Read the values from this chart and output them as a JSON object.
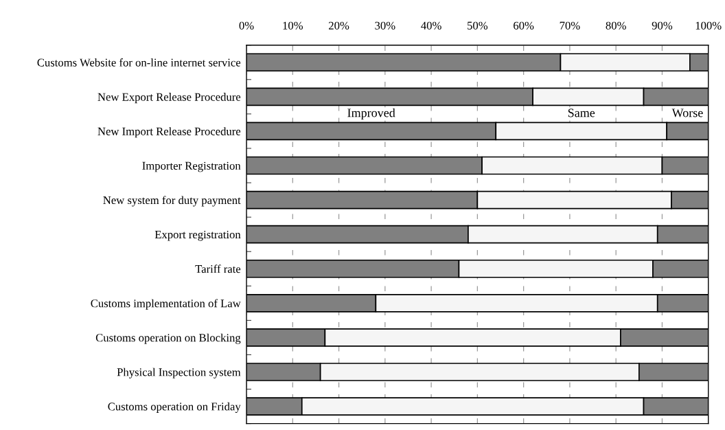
{
  "chart_data": {
    "type": "bar",
    "orientation": "horizontal",
    "stacked": true,
    "categories": [
      "Customs Website for on-line internet service",
      "New Export Release Procedure",
      "New Import Release Procedure",
      "Importer Registration",
      "New system for duty payment",
      "Export registration",
      "Tariff rate",
      "Customs implementation of Law",
      "Customs operation on Blocking",
      "Physical Inspection system",
      "Customs operation on Friday"
    ],
    "series": [
      {
        "name": "Improved",
        "color": "#808080",
        "values": [
          68,
          62,
          54,
          51,
          50,
          48,
          46,
          28,
          17,
          16,
          12
        ]
      },
      {
        "name": "Same",
        "color": "#f5f5f5",
        "values": [
          28,
          24,
          37,
          39,
          42,
          41,
          42,
          61,
          64,
          69,
          74
        ]
      },
      {
        "name": "Worse",
        "color": "#808080",
        "values": [
          4,
          14,
          9,
          10,
          8,
          11,
          12,
          11,
          19,
          15,
          14
        ]
      }
    ],
    "xlim": [
      0,
      100
    ],
    "xticks": [
      {
        "value": 0,
        "label": "0%"
      },
      {
        "value": 10,
        "label": "10%"
      },
      {
        "value": 20,
        "label": "20%"
      },
      {
        "value": 30,
        "label": "30%"
      },
      {
        "value": 40,
        "label": "40%"
      },
      {
        "value": 50,
        "label": "50%"
      },
      {
        "value": 60,
        "label": "60%"
      },
      {
        "value": 70,
        "label": "70%"
      },
      {
        "value": 80,
        "label": "80%"
      },
      {
        "value": 90,
        "label": "90%"
      },
      {
        "value": 100,
        "label": "100%"
      }
    ],
    "grid": "x",
    "legend": false
  }
}
